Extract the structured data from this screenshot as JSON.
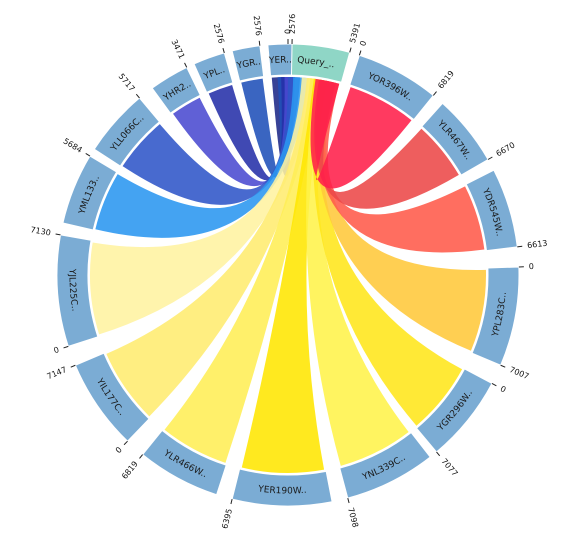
{
  "diagram": {
    "type": "chord",
    "query": {
      "label": "Query_..",
      "color": "#8fd6c6"
    },
    "arc_color": "#7bacd4",
    "segments": [
      {
        "label": "YOR396W..",
        "start_value": "0",
        "end_value": "6819",
        "chord_color": "#ff1f4a"
      },
      {
        "label": "YLR467W..",
        "start_value": "",
        "end_value": "6670",
        "chord_color": "#ec4848"
      },
      {
        "label": "YDR545W..",
        "start_value": "",
        "end_value": "6613",
        "chord_color": "#ff5a4a"
      },
      {
        "label": "YPL283C..",
        "start_value": "0",
        "end_value": "7007",
        "chord_color": "#ffc83a"
      },
      {
        "label": "YGR296W..",
        "start_value": "0",
        "end_value": "7077",
        "chord_color": "#ffe61a"
      },
      {
        "label": "YNL339C..",
        "start_value": "",
        "end_value": "7098",
        "chord_color": "#fff24a"
      },
      {
        "label": "YER190W..",
        "start_value": "",
        "end_value": "6395",
        "chord_color": "#ffe600"
      },
      {
        "label": "YLR466W..",
        "start_value": "",
        "end_value": "6819",
        "chord_color": "#ffee55"
      },
      {
        "label": "YIL177C..",
        "start_value": "0",
        "end_value": "7147",
        "chord_color": "#ffec70"
      },
      {
        "label": "YJL225C..",
        "start_value": "0",
        "end_value": "7130",
        "chord_color": "#fff3a0"
      },
      {
        "label": "YML133..",
        "start_value": "",
        "end_value": "5684",
        "chord_color": "#2a96f0"
      },
      {
        "label": "YLL066C..",
        "start_value": "",
        "end_value": "5717",
        "chord_color": "#2f55c8"
      },
      {
        "label": "YHR2..",
        "start_value": "",
        "end_value": "3471",
        "chord_color": "#4a4ad0"
      },
      {
        "label": "YPL..",
        "start_value": "",
        "end_value": "2576",
        "chord_color": "#2530a8"
      },
      {
        "label": "YGR..",
        "start_value": "",
        "end_value": "2576",
        "chord_color": "#1f50b8"
      },
      {
        "label": "YER..",
        "start_value": "",
        "end_value": "2576",
        "chord_color": "#1c2888"
      }
    ],
    "query_ticks": {
      "start_value": "0",
      "end_value": "5391"
    }
  }
}
